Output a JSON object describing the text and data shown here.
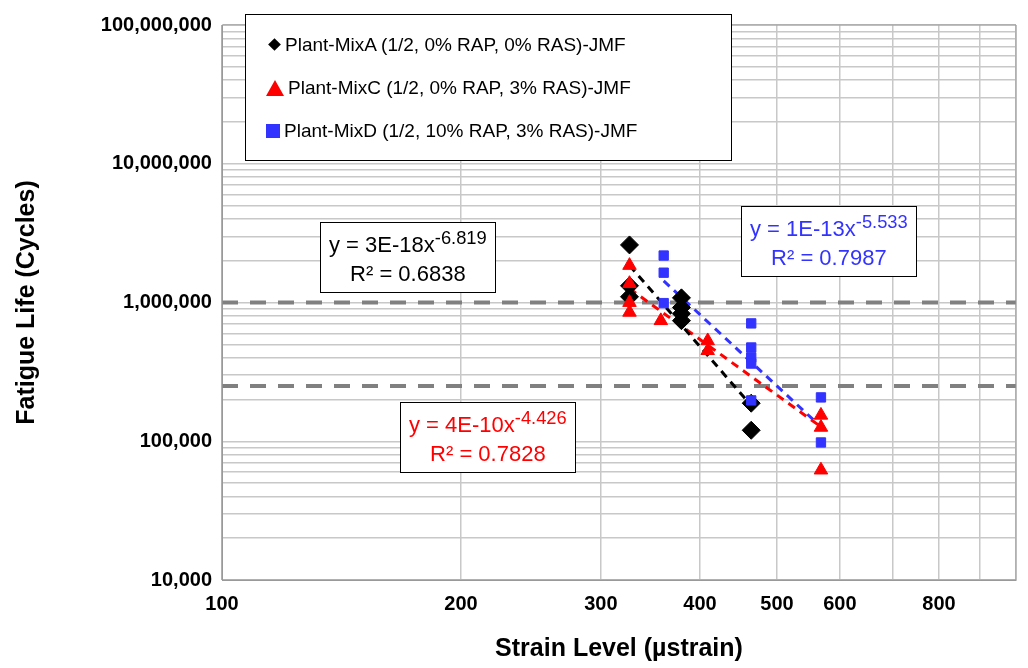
{
  "chart_data": {
    "type": "scatter",
    "xlabel": "Strain Level (µstrain)",
    "ylabel": "Fatigue Life (Cycles)",
    "log": "xy",
    "grid": true,
    "legend": "top",
    "xlim": [
      100,
      1000
    ],
    "ylim": [
      10000,
      100000000
    ],
    "xticks": [
      100,
      200,
      300,
      400,
      500,
      600,
      {
        "value": 700,
        "label": null
      },
      800,
      {
        "value": 900,
        "label": null
      },
      {
        "value": 1000,
        "label": null
      }
    ],
    "yticks": [
      {
        "value": 10000,
        "label": "10,000"
      },
      {
        "value": 20000,
        "label": null
      },
      {
        "value": 30000,
        "label": null
      },
      {
        "value": 40000,
        "label": null
      },
      {
        "value": 50000,
        "label": null
      },
      {
        "value": 60000,
        "label": null
      },
      {
        "value": 70000,
        "label": null
      },
      {
        "value": 80000,
        "label": null
      },
      {
        "value": 90000,
        "label": null
      },
      {
        "value": 100000,
        "label": "100,000"
      },
      {
        "value": 200000,
        "label": null
      },
      {
        "value": 300000,
        "label": null
      },
      {
        "value": 400000,
        "label": null
      },
      {
        "value": 500000,
        "label": null
      },
      {
        "value": 600000,
        "label": null
      },
      {
        "value": 700000,
        "label": null
      },
      {
        "value": 800000,
        "label": null
      },
      {
        "value": 900000,
        "label": null
      },
      {
        "value": 1000000,
        "label": "1,000,000"
      },
      {
        "value": 2000000,
        "label": null
      },
      {
        "value": 3000000,
        "label": null
      },
      {
        "value": 4000000,
        "label": null
      },
      {
        "value": 5000000,
        "label": null
      },
      {
        "value": 6000000,
        "label": null
      },
      {
        "value": 7000000,
        "label": null
      },
      {
        "value": 8000000,
        "label": null
      },
      {
        "value": 9000000,
        "label": null
      },
      {
        "value": 10000000,
        "label": "10,000,000"
      },
      {
        "value": 20000000,
        "label": null
      },
      {
        "value": 30000000,
        "label": null
      },
      {
        "value": 40000000,
        "label": null
      },
      {
        "value": 50000000,
        "label": null
      },
      {
        "value": 60000000,
        "label": null
      },
      {
        "value": 70000000,
        "label": null
      },
      {
        "value": 80000000,
        "label": null
      },
      {
        "value": 90000000,
        "label": null
      },
      {
        "value": 100000000,
        "label": "100,000,000"
      }
    ],
    "series": [
      {
        "name": "Plant-MixA (1/2, 0% RAP, 0% RAS)-JMF",
        "color": "#000000",
        "marker": "diamond",
        "x": [
          326,
          326,
          326,
          379,
          379,
          379,
          379,
          464,
          464
        ],
        "values": [
          2600000,
          1320000,
          1100000,
          1080000,
          920000,
          830000,
          740000,
          188000,
          120000
        ]
      },
      {
        "name": "Plant-MixC (1/2, 0% RAP, 3% RAS)-JMF",
        "color": "#ff0000",
        "marker": "triangle",
        "x": [
          326,
          326,
          326,
          326,
          357,
          409,
          409,
          568,
          568,
          568
        ],
        "values": [
          1850000,
          1370000,
          1000000,
          850000,
          740000,
          530000,
          450000,
          154000,
          126000,
          62000
        ]
      },
      {
        "name": "Plant-MixD (1/2, 10% RAP, 3% RAS)-JMF",
        "color": "#3333ff",
        "marker": "square",
        "x": [
          360,
          360,
          360,
          464,
          464,
          464,
          464,
          464,
          568,
          568
        ],
        "values": [
          2180000,
          1640000,
          990000,
          707000,
          474000,
          402000,
          363000,
          197000,
          207000,
          98000
        ]
      },
      {
        "type": "line",
        "color": "#000000",
        "marker": "none",
        "line_style": "dashed",
        "x": [
          326,
          464
        ],
        "values": [
          1850000,
          181000
        ]
      },
      {
        "type": "line",
        "color": "#ff0000",
        "marker": "none",
        "line_style": "dashed",
        "x": [
          326,
          568
        ],
        "values": [
          1260000,
          127000
        ]
      },
      {
        "type": "line",
        "color": "#3333ff",
        "marker": "none",
        "line_style": "dashed",
        "x": [
          360,
          568
        ],
        "values": [
          1430000,
          127000
        ]
      }
    ],
    "ref_lines": [
      {
        "axis": "y",
        "value": 1000000,
        "label": null,
        "color": "#808080",
        "line_style": "dashed"
      },
      {
        "axis": "y",
        "value": 250000,
        "label": null,
        "color": "#808080",
        "line_style": "dashed"
      }
    ],
    "annotations": [
      "y = 3E-18x$^{-6.819}$\nR² = 0.6838",
      "y = 4E-10x$^{-4.426}$\nR² = 0.7828",
      "y = 1E-13x$^{-5.533}$\nR² = 0.7987"
    ]
  }
}
